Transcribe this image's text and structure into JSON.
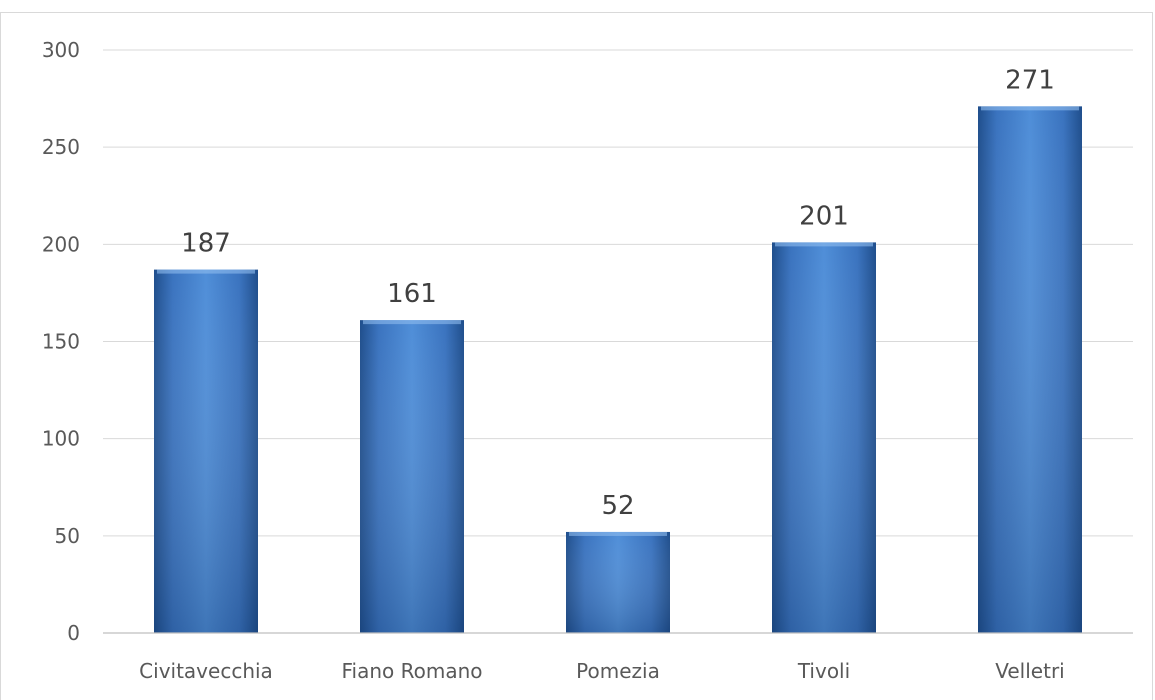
{
  "chart_data": {
    "type": "bar",
    "title": "",
    "xlabel": "",
    "ylabel": "",
    "categories": [
      "Civitavecchia",
      "Fiano Romano",
      "Pomezia",
      "Tivoli",
      "Velletri"
    ],
    "values": [
      187,
      161,
      52,
      201,
      271
    ],
    "data_labels": [
      "187",
      "161",
      "52",
      "201",
      "271"
    ],
    "ylim": [
      0,
      300
    ],
    "yticks": [
      0,
      50,
      100,
      150,
      200,
      250,
      300
    ],
    "ytick_labels": [
      "0",
      "50",
      "100",
      "150",
      "200",
      "250",
      "300"
    ],
    "grid": true,
    "legend": "none",
    "colors": {
      "bar_light": "#5b9bd5",
      "bar_mid": "#3f78c4",
      "bar_dark": "#1f4e8c",
      "grid": "#d9d9d9"
    }
  }
}
